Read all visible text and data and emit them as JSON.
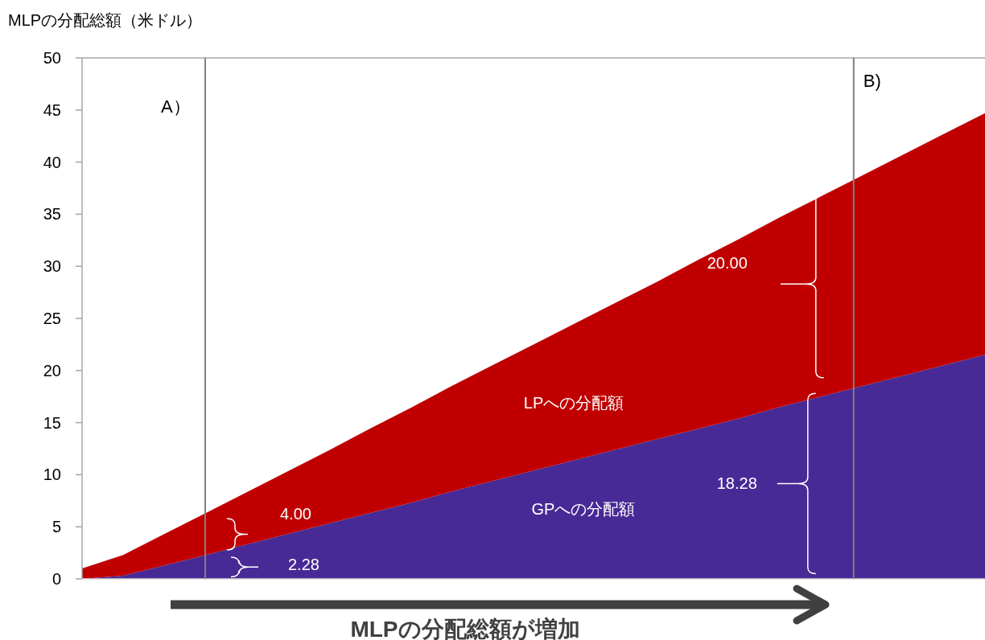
{
  "chart_data": {
    "type": "area",
    "stacked": true,
    "ylabel": "MLPの分配総額（米ドル）",
    "tick_labels": "y",
    "categories": [
      null,
      null,
      null,
      null,
      null,
      null,
      null,
      null,
      null,
      null,
      null,
      null,
      null,
      null,
      null,
      null,
      null,
      null,
      null,
      null,
      null,
      null,
      null
    ],
    "ylim": [
      0,
      50
    ],
    "yticks": [
      0,
      5,
      10,
      15,
      20,
      25,
      30,
      35,
      40,
      45,
      50
    ],
    "series": [
      {
        "color": "#472a96",
        "values": [
          0,
          0.3,
          1.3,
          2.28,
          3.3,
          4.3,
          5.3,
          6.3,
          7.3,
          8.4,
          9.4,
          10.4,
          11.4,
          12.4,
          13.4,
          14.4,
          15.4,
          16.5,
          17.5,
          18.5,
          19.5,
          20.5,
          21.5
        ]
      },
      {
        "color": "#c00000",
        "values": [
          1.0,
          2.0,
          3.0,
          4.0,
          5.0,
          6.0,
          7.0,
          8.1,
          9.1,
          10.1,
          11.1,
          12.1,
          13.1,
          14.1,
          15.1,
          16.2,
          17.2,
          18.2,
          19.2,
          20.2,
          21.2,
          22.2,
          23.2
        ]
      }
    ],
    "annotations": [
      "A）",
      "B)",
      "4.00",
      "2.28",
      "20.00",
      "18.28",
      "LPへの分配額",
      "GPへの分配額",
      "MLPの分配総額が増加"
    ]
  }
}
